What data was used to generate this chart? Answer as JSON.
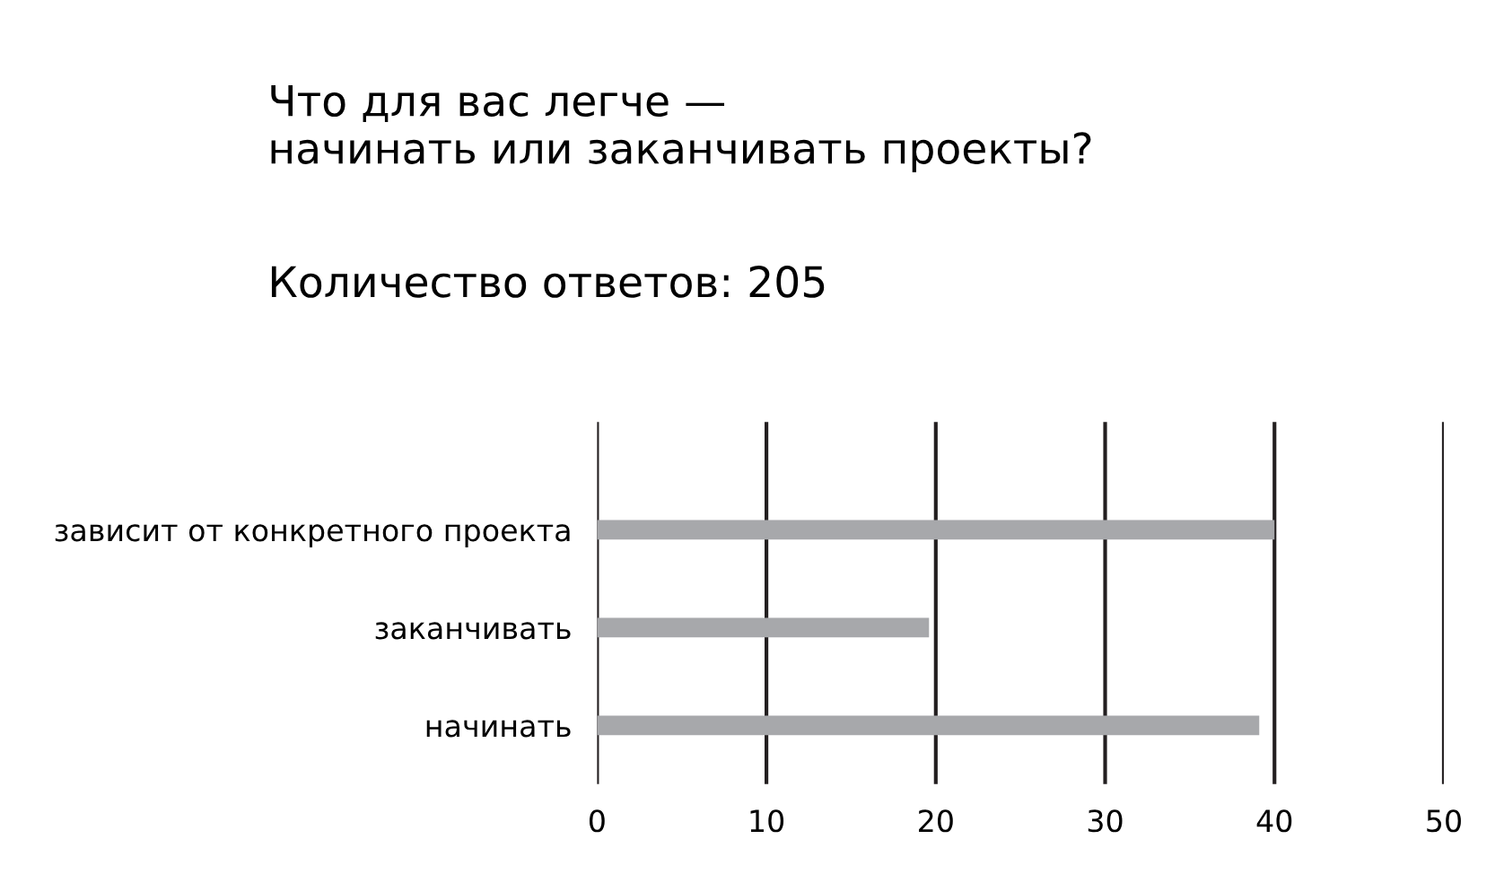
{
  "chart_data": {
    "type": "bar",
    "orientation": "horizontal",
    "title": "Что для вас легче —\nначинать или заканчивать проекты?",
    "subtitle": "Количество ответов: 205",
    "categories": [
      "зависит от конкретного проекта",
      "заканчивать",
      "начинать"
    ],
    "values": [
      40,
      19.6,
      39.1
    ],
    "color": "#a7a8ab",
    "xlim": [
      0,
      50
    ],
    "xticks": [
      0,
      10,
      20,
      30,
      40,
      50
    ],
    "grid": "x",
    "legend": false
  }
}
